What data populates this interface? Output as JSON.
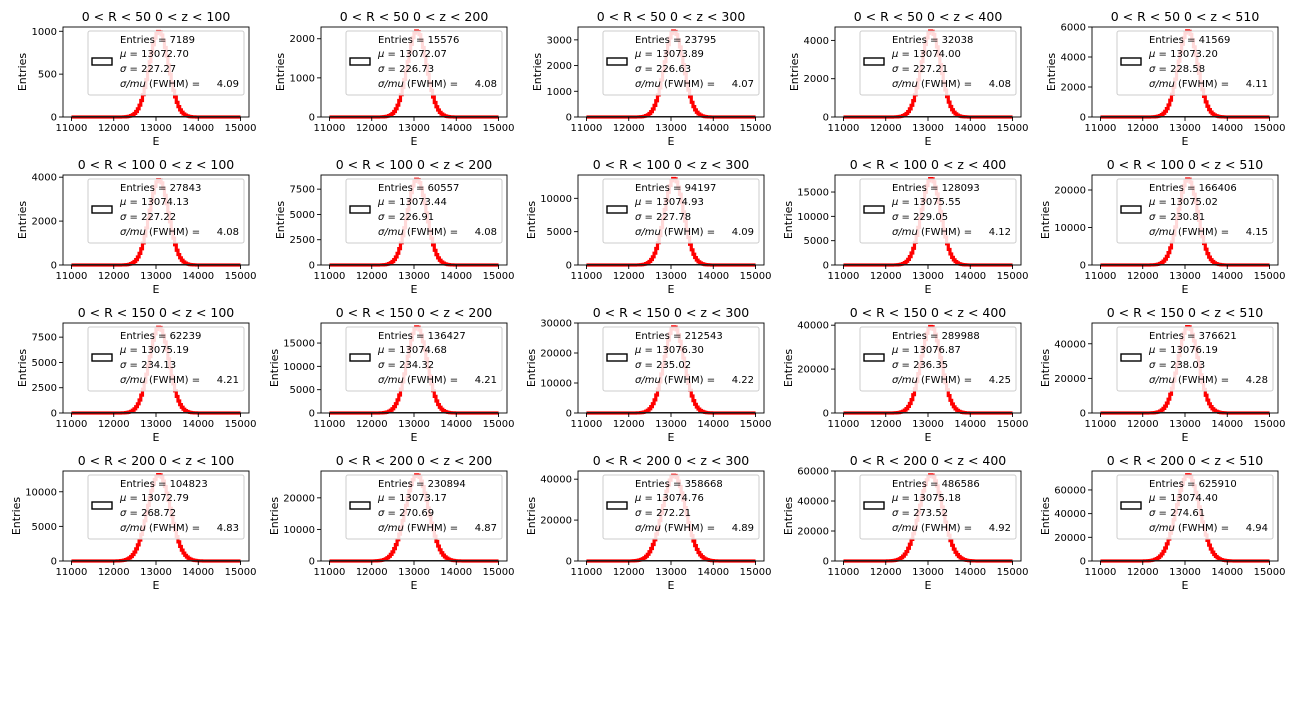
{
  "chart_data": [
    {
      "type": "bar",
      "title": "0 < R < 50 0 < z < 100",
      "xlabel": "E",
      "ylabel": "Entries",
      "xlim": [
        10800,
        15200
      ],
      "ylim": [
        0,
        1050
      ],
      "xticks": [
        11000,
        12000,
        13000,
        14000,
        15000
      ],
      "xtick_labels": [
        "11000",
        "12000",
        "13000",
        "14000",
        "15000"
      ],
      "yticks": [
        0,
        500,
        1000
      ],
      "ytick_labels": [
        "0",
        "500",
        "1000"
      ],
      "peak": 1000,
      "legend": {
        "entries": "Entries = 7189",
        "mu": "= 13072.70",
        "sigma": "=  227.27",
        "res": "4.09"
      }
    },
    {
      "type": "bar",
      "title": "0 < R < 50 0 < z < 200",
      "xlabel": "E",
      "ylabel": "Entries",
      "xlim": [
        10800,
        15200
      ],
      "ylim": [
        0,
        2300
      ],
      "xticks": [
        11000,
        12000,
        13000,
        14000,
        15000
      ],
      "xtick_labels": [
        "11000",
        "12000",
        "13000",
        "14000",
        "15000"
      ],
      "yticks": [
        0,
        1000,
        2000
      ],
      "ytick_labels": [
        "0",
        "1000",
        "2000"
      ],
      "peak": 2200,
      "legend": {
        "entries": "Entries = 15576",
        "mu": "= 13072.07",
        "sigma": "=  226.73",
        "res": "4.08"
      }
    },
    {
      "type": "bar",
      "title": "0 < R < 50 0 < z < 300",
      "xlabel": "E",
      "ylabel": "Entries",
      "xlim": [
        10800,
        15200
      ],
      "ylim": [
        0,
        3500
      ],
      "xticks": [
        11000,
        12000,
        13000,
        14000,
        15000
      ],
      "xtick_labels": [
        "11000",
        "12000",
        "13000",
        "14000",
        "15000"
      ],
      "yticks": [
        0,
        1000,
        2000,
        3000
      ],
      "ytick_labels": [
        "0",
        "1000",
        "2000",
        "3000"
      ],
      "peak": 3350,
      "legend": {
        "entries": "Entries = 23795",
        "mu": "= 13073.89",
        "sigma": "=  226.63",
        "res": "4.07"
      }
    },
    {
      "type": "bar",
      "title": "0 < R < 50 0 < z < 400",
      "xlabel": "E",
      "ylabel": "Entries",
      "xlim": [
        10800,
        15200
      ],
      "ylim": [
        0,
        4700
      ],
      "xticks": [
        11000,
        12000,
        13000,
        14000,
        15000
      ],
      "xtick_labels": [
        "11000",
        "12000",
        "13000",
        "14000",
        "15000"
      ],
      "yticks": [
        0,
        2000,
        4000
      ],
      "ytick_labels": [
        "0",
        "2000",
        "4000"
      ],
      "peak": 4500,
      "legend": {
        "entries": "Entries = 32038",
        "mu": "= 13074.00",
        "sigma": "=  227.21",
        "res": "4.08"
      }
    },
    {
      "type": "bar",
      "title": "0 < R < 50 0 < z < 510",
      "xlabel": "E",
      "ylabel": "Entries",
      "xlim": [
        10800,
        15200
      ],
      "ylim": [
        0,
        6000
      ],
      "xticks": [
        11000,
        12000,
        13000,
        14000,
        15000
      ],
      "xtick_labels": [
        "11000",
        "12000",
        "13000",
        "14000",
        "15000"
      ],
      "yticks": [
        0,
        2000,
        4000,
        6000
      ],
      "ytick_labels": [
        "0",
        "2000",
        "4000",
        "6000"
      ],
      "peak": 5750,
      "legend": {
        "entries": "Entries = 41569",
        "mu": "= 13073.20",
        "sigma": "=  228.58",
        "res": "4.11"
      }
    },
    {
      "type": "bar",
      "title": "0 < R < 100 0 < z < 100",
      "xlabel": "E",
      "ylabel": "Entries",
      "xlim": [
        10800,
        15200
      ],
      "ylim": [
        0,
        4100
      ],
      "xticks": [
        11000,
        12000,
        13000,
        14000,
        15000
      ],
      "xtick_labels": [
        "11000",
        "12000",
        "13000",
        "14000",
        "15000"
      ],
      "yticks": [
        0,
        2000,
        4000
      ],
      "ytick_labels": [
        "0",
        "2000",
        "4000"
      ],
      "peak": 3900,
      "legend": {
        "entries": "Entries = 27843",
        "mu": "= 13074.13",
        "sigma": "=  227.22",
        "res": "4.08"
      }
    },
    {
      "type": "bar",
      "title": "0 < R < 100 0 < z < 200",
      "xlabel": "E",
      "ylabel": "Entries",
      "xlim": [
        10800,
        15200
      ],
      "ylim": [
        0,
        8900
      ],
      "xticks": [
        11000,
        12000,
        13000,
        14000,
        15000
      ],
      "xtick_labels": [
        "11000",
        "12000",
        "13000",
        "14000",
        "15000"
      ],
      "yticks": [
        0,
        2500,
        5000,
        7500
      ],
      "ytick_labels": [
        "0",
        "2500",
        "5000",
        "7500"
      ],
      "peak": 8500,
      "legend": {
        "entries": "Entries = 60557",
        "mu": "= 13073.44",
        "sigma": "=  226.91",
        "res": "4.08"
      }
    },
    {
      "type": "bar",
      "title": "0 < R < 100 0 < z < 300",
      "xlabel": "E",
      "ylabel": "Entries",
      "xlim": [
        10800,
        15200
      ],
      "ylim": [
        0,
        13500
      ],
      "xticks": [
        11000,
        12000,
        13000,
        14000,
        15000
      ],
      "xtick_labels": [
        "11000",
        "12000",
        "13000",
        "14000",
        "15000"
      ],
      "yticks": [
        0,
        5000,
        10000
      ],
      "ytick_labels": [
        "0",
        "5000",
        "10000"
      ],
      "peak": 13000,
      "legend": {
        "entries": "Entries = 94197",
        "mu": "= 13074.93",
        "sigma": "=  227.78",
        "res": "4.09"
      }
    },
    {
      "type": "bar",
      "title": "0 < R < 100 0 < z < 400",
      "xlabel": "E",
      "ylabel": "Entries",
      "xlim": [
        10800,
        15200
      ],
      "ylim": [
        0,
        18500
      ],
      "xticks": [
        11000,
        12000,
        13000,
        14000,
        15000
      ],
      "xtick_labels": [
        "11000",
        "12000",
        "13000",
        "14000",
        "15000"
      ],
      "yticks": [
        0,
        5000,
        10000,
        15000
      ],
      "ytick_labels": [
        "0",
        "5000",
        "10000",
        "15000"
      ],
      "peak": 17800,
      "legend": {
        "entries": "Entries = 128093",
        "mu": "= 13075.55",
        "sigma": "=  229.05",
        "res": "4.12"
      }
    },
    {
      "type": "bar",
      "title": "0 < R < 100 0 < z < 510",
      "xlabel": "E",
      "ylabel": "Entries",
      "xlim": [
        10800,
        15200
      ],
      "ylim": [
        0,
        24000
      ],
      "xticks": [
        11000,
        12000,
        13000,
        14000,
        15000
      ],
      "xtick_labels": [
        "11000",
        "12000",
        "13000",
        "14000",
        "15000"
      ],
      "yticks": [
        0,
        10000,
        20000
      ],
      "ytick_labels": [
        "0",
        "10000",
        "20000"
      ],
      "peak": 23000,
      "legend": {
        "entries": "Entries = 166406",
        "mu": "= 13075.02",
        "sigma": "=  230.81",
        "res": "4.15"
      }
    },
    {
      "type": "bar",
      "title": "0 < R < 150 0 < z < 100",
      "xlabel": "E",
      "ylabel": "Entries",
      "xlim": [
        10800,
        15200
      ],
      "ylim": [
        0,
        8900
      ],
      "xticks": [
        11000,
        12000,
        13000,
        14000,
        15000
      ],
      "xtick_labels": [
        "11000",
        "12000",
        "13000",
        "14000",
        "15000"
      ],
      "yticks": [
        0,
        2500,
        5000,
        7500
      ],
      "ytick_labels": [
        "0",
        "2500",
        "5000",
        "7500"
      ],
      "peak": 8500,
      "legend": {
        "entries": "Entries = 62239",
        "mu": "= 13075.19",
        "sigma": "=  234.13",
        "res": "4.21"
      }
    },
    {
      "type": "bar",
      "title": "0 < R < 150 0 < z < 200",
      "xlabel": "E",
      "ylabel": "Entries",
      "xlim": [
        10800,
        15200
      ],
      "ylim": [
        0,
        19300
      ],
      "xticks": [
        11000,
        12000,
        13000,
        14000,
        15000
      ],
      "xtick_labels": [
        "11000",
        "12000",
        "13000",
        "14000",
        "15000"
      ],
      "yticks": [
        0,
        5000,
        10000,
        15000
      ],
      "ytick_labels": [
        "0",
        "5000",
        "10000",
        "15000"
      ],
      "peak": 18500,
      "legend": {
        "entries": "Entries = 136427",
        "mu": "= 13074.68",
        "sigma": "=  234.32",
        "res": "4.21"
      }
    },
    {
      "type": "bar",
      "title": "0 < R < 150 0 < z < 300",
      "xlabel": "E",
      "ylabel": "Entries",
      "xlim": [
        10800,
        15200
      ],
      "ylim": [
        0,
        30000
      ],
      "xticks": [
        11000,
        12000,
        13000,
        14000,
        15000
      ],
      "xtick_labels": [
        "11000",
        "12000",
        "13000",
        "14000",
        "15000"
      ],
      "yticks": [
        0,
        10000,
        20000,
        30000
      ],
      "ytick_labels": [
        "0",
        "10000",
        "20000",
        "30000"
      ],
      "peak": 28800,
      "legend": {
        "entries": "Entries = 212543",
        "mu": "= 13076.30",
        "sigma": "=  235.02",
        "res": "4.22"
      }
    },
    {
      "type": "bar",
      "title": "0 < R < 150 0 < z < 400",
      "xlabel": "E",
      "ylabel": "Entries",
      "xlim": [
        10800,
        15200
      ],
      "ylim": [
        0,
        41000
      ],
      "xticks": [
        11000,
        12000,
        13000,
        14000,
        15000
      ],
      "xtick_labels": [
        "11000",
        "12000",
        "13000",
        "14000",
        "15000"
      ],
      "yticks": [
        0,
        20000,
        40000
      ],
      "ytick_labels": [
        "0",
        "20000",
        "40000"
      ],
      "peak": 39500,
      "legend": {
        "entries": "Entries = 289988",
        "mu": "= 13076.87",
        "sigma": "=  236.35",
        "res": "4.25"
      }
    },
    {
      "type": "bar",
      "title": "0 < R < 150 0 < z < 510",
      "xlabel": "E",
      "ylabel": "Entries",
      "xlim": [
        10800,
        15200
      ],
      "ylim": [
        0,
        52000
      ],
      "xticks": [
        11000,
        12000,
        13000,
        14000,
        15000
      ],
      "xtick_labels": [
        "11000",
        "12000",
        "13000",
        "14000",
        "15000"
      ],
      "yticks": [
        0,
        20000,
        40000
      ],
      "ytick_labels": [
        "0",
        "20000",
        "40000"
      ],
      "peak": 50000,
      "legend": {
        "entries": "Entries = 376621",
        "mu": "= 13076.19",
        "sigma": "=  238.03",
        "res": "4.28"
      }
    },
    {
      "type": "bar",
      "title": "0 < R < 200 0 < z < 100",
      "xlabel": "E",
      "ylabel": "Entries",
      "xlim": [
        10800,
        15200
      ],
      "ylim": [
        0,
        13000
      ],
      "xticks": [
        11000,
        12000,
        13000,
        14000,
        15000
      ],
      "xtick_labels": [
        "11000",
        "12000",
        "13000",
        "14000",
        "15000"
      ],
      "yticks": [
        0,
        5000,
        10000
      ],
      "ytick_labels": [
        "0",
        "5000",
        "10000"
      ],
      "peak": 12500,
      "legend": {
        "entries": "Entries = 104823",
        "mu": "= 13072.79",
        "sigma": "=  268.72",
        "res": "4.83"
      }
    },
    {
      "type": "bar",
      "title": "0 < R < 200 0 < z < 200",
      "xlabel": "E",
      "ylabel": "Entries",
      "xlim": [
        10800,
        15200
      ],
      "ylim": [
        0,
        28500
      ],
      "xticks": [
        11000,
        12000,
        13000,
        14000,
        15000
      ],
      "xtick_labels": [
        "11000",
        "12000",
        "13000",
        "14000",
        "15000"
      ],
      "yticks": [
        0,
        10000,
        20000
      ],
      "ytick_labels": [
        "0",
        "10000",
        "20000"
      ],
      "peak": 27300,
      "legend": {
        "entries": "Entries = 230894",
        "mu": "= 13073.17",
        "sigma": "=  270.69",
        "res": "4.87"
      }
    },
    {
      "type": "bar",
      "title": "0 < R < 200 0 < z < 300",
      "xlabel": "E",
      "ylabel": "Entries",
      "xlim": [
        10800,
        15200
      ],
      "ylim": [
        0,
        44000
      ],
      "xticks": [
        11000,
        12000,
        13000,
        14000,
        15000
      ],
      "xtick_labels": [
        "11000",
        "12000",
        "13000",
        "14000",
        "15000"
      ],
      "yticks": [
        0,
        20000,
        40000
      ],
      "ytick_labels": [
        "0",
        "20000",
        "40000"
      ],
      "peak": 42000,
      "legend": {
        "entries": "Entries = 358668",
        "mu": "= 13074.76",
        "sigma": "=  272.21",
        "res": "4.89"
      }
    },
    {
      "type": "bar",
      "title": "0 < R < 200 0 < z < 400",
      "xlabel": "E",
      "ylabel": "Entries",
      "xlim": [
        10800,
        15200
      ],
      "ylim": [
        0,
        60000
      ],
      "xticks": [
        11000,
        12000,
        13000,
        14000,
        15000
      ],
      "xtick_labels": [
        "11000",
        "12000",
        "13000",
        "14000",
        "15000"
      ],
      "yticks": [
        0,
        20000,
        40000,
        60000
      ],
      "ytick_labels": [
        "0",
        "20000",
        "40000",
        "60000"
      ],
      "peak": 57500,
      "legend": {
        "entries": "Entries = 486586",
        "mu": "= 13075.18",
        "sigma": "=  273.52",
        "res": "4.92"
      }
    },
    {
      "type": "bar",
      "title": "0 < R < 200 0 < z < 510",
      "xlabel": "E",
      "ylabel": "Entries",
      "xlim": [
        10800,
        15200
      ],
      "ylim": [
        0,
        76000
      ],
      "xticks": [
        11000,
        12000,
        13000,
        14000,
        15000
      ],
      "xtick_labels": [
        "11000",
        "12000",
        "13000",
        "14000",
        "15000"
      ],
      "yticks": [
        0,
        20000,
        40000,
        60000
      ],
      "ytick_labels": [
        "0",
        "20000",
        "40000",
        "60000"
      ],
      "peak": 73000,
      "legend": {
        "entries": "Entries = 625910",
        "mu": "= 13074.40",
        "sigma": "=  274.61",
        "res": "4.94"
      }
    }
  ],
  "legend_labels": {
    "mu_symbol": "μ",
    "sigma_symbol": "σ",
    "res_label": "σ/mu",
    "res_suffix": " (FWHM)   =",
    "entries_prefix": ""
  },
  "colors": {
    "histogram": "#ff0000",
    "axes": "#000000",
    "background": "#ffffff"
  }
}
